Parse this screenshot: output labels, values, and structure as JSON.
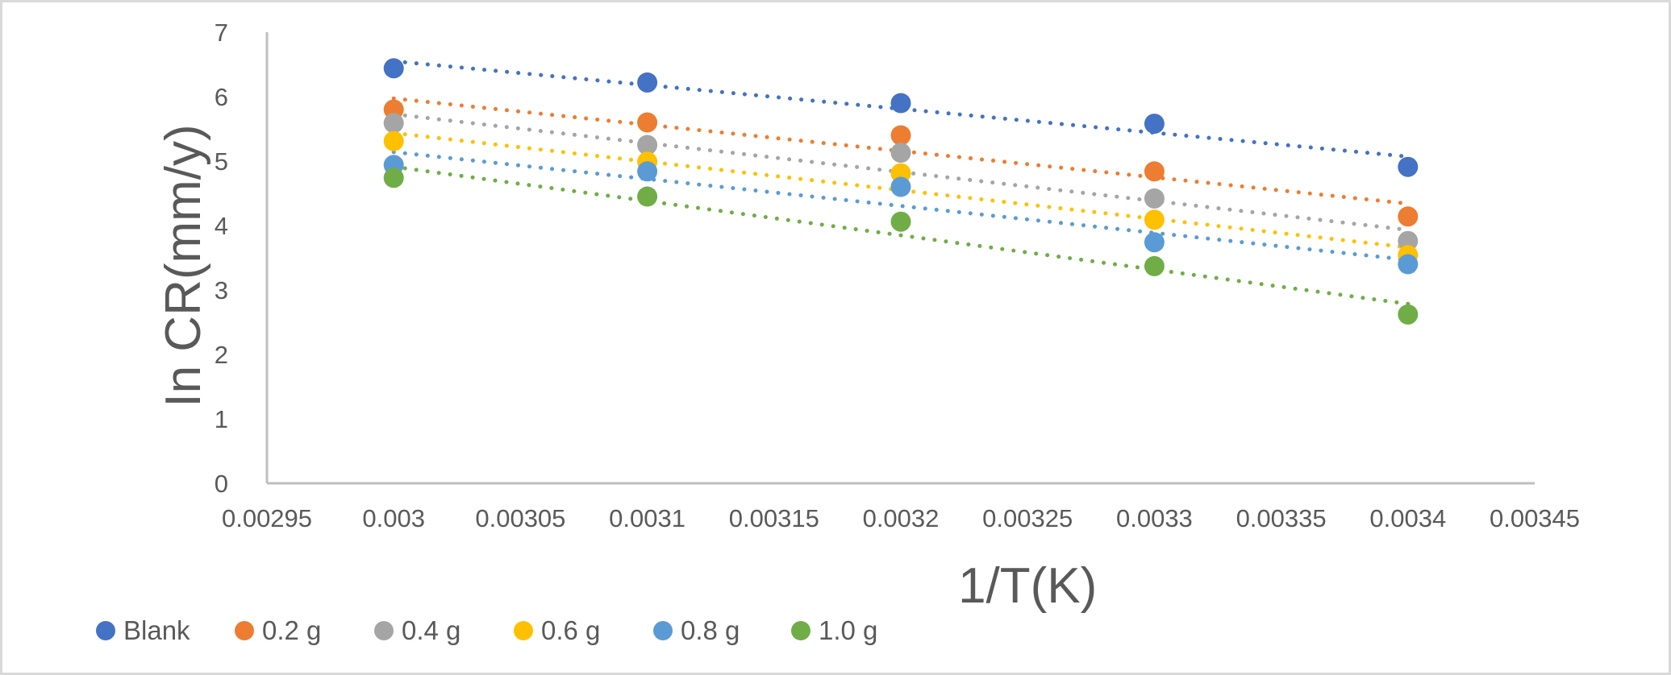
{
  "chart_data": {
    "type": "scatter",
    "title": "",
    "xlabel": "1/T(K)",
    "ylabel": "In CR(mm/y)",
    "xlim": [
      0.00295,
      0.00345
    ],
    "ylim": [
      0,
      7
    ],
    "x_ticks": [
      "0.00295",
      "0.003",
      "0.00305",
      "0.0031",
      "0.00315",
      "0.0032",
      "0.00325",
      "0.0033",
      "0.00335",
      "0.0034",
      "0.00345"
    ],
    "y_ticks": [
      "0",
      "1",
      "2",
      "3",
      "4",
      "5",
      "6",
      "7"
    ],
    "grid": false,
    "legend_position": "bottom",
    "trendline": "linear (dotted)",
    "x": [
      0.003,
      0.0031,
      0.0032,
      0.0033,
      0.0034
    ],
    "series": [
      {
        "name": "Blank",
        "color": "#4472c4",
        "values": [
          6.44,
          6.22,
          5.9,
          5.58,
          4.91
        ]
      },
      {
        "name": "0.2 g",
        "color": "#ed7d31",
        "values": [
          5.8,
          5.6,
          5.4,
          4.84,
          4.14
        ]
      },
      {
        "name": "0.4 g",
        "color": "#a5a5a5",
        "values": [
          5.59,
          5.25,
          5.13,
          4.42,
          3.76
        ]
      },
      {
        "name": "0.6 g",
        "color": "#ffc000",
        "values": [
          5.31,
          4.99,
          4.81,
          4.09,
          3.54
        ]
      },
      {
        "name": "0.8 g",
        "color": "#5b9bd5",
        "values": [
          4.94,
          4.84,
          4.6,
          3.74,
          3.4
        ]
      },
      {
        "name": "1.0 g",
        "color": "#70ad47",
        "values": [
          4.74,
          4.45,
          4.06,
          3.37,
          2.62
        ]
      }
    ]
  }
}
